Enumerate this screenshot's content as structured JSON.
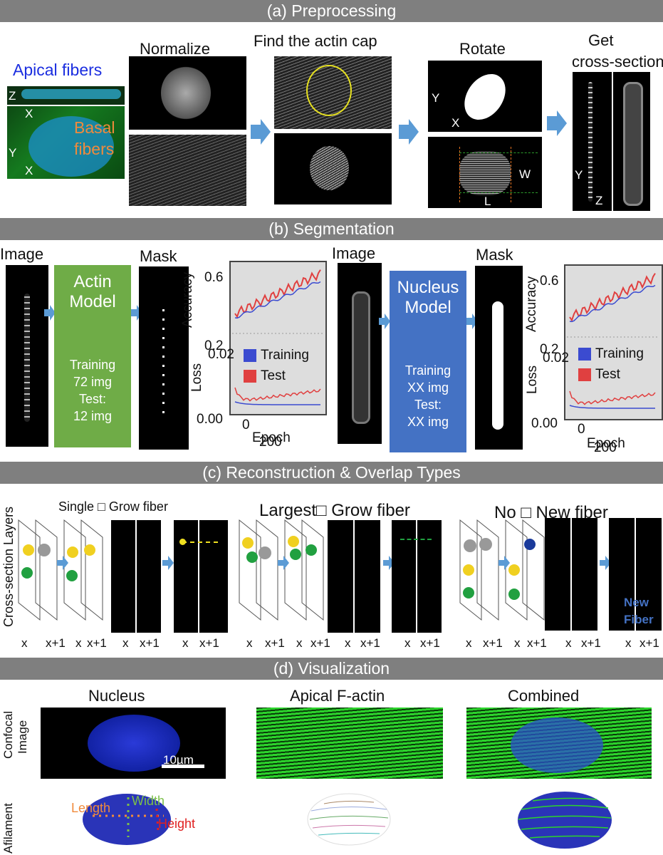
{
  "sections": {
    "a": "(a) Preprocessing",
    "b": "(b) Segmentation",
    "c": "(c) Reconstruction & Overlap Types",
    "d": "(d) Visualization"
  },
  "pre": {
    "apical": "Apical fibers",
    "basal1": "Basal",
    "basal2": "fibers",
    "axis_z": "Z",
    "axis_x": "X",
    "axis_y": "Y",
    "normalize": "Normalize",
    "find_cap": "Find the actin cap",
    "rotate": "Rotate",
    "get1": "Get",
    "get2": "cross-section",
    "W": "W",
    "L": "L"
  },
  "seg": {
    "image": "Image",
    "mask": "Mask",
    "actin1": "Actin",
    "actin2": "Model",
    "actin_train1": "Training",
    "actin_train2": "72 img",
    "actin_test1": "Test:",
    "actin_test2": "12 img",
    "nucleus1": "Nucleus",
    "nucleus2": "Model",
    "nuc_train1": "Training",
    "nuc_train2": "XX img",
    "nuc_test1": "Test:",
    "nuc_test2": "XX img",
    "accuracy": "Accuracy",
    "loss": "Loss",
    "epoch": "Epoch",
    "legend_training": "Training",
    "legend_test": "Test",
    "tick_06": "0.6",
    "tick_02": "0.2",
    "tick_002": "0.02",
    "tick_000": "0.00",
    "tick_0": "0",
    "tick_200": "200",
    "color_training": "#3b4bd0",
    "color_test": "#e04040"
  },
  "recon": {
    "ylabel": "Cross-section Layers",
    "t1": "Single □ Grow fiber",
    "t2": "Largest□ Grow fiber",
    "t3": "No □ New fiber",
    "x": "x",
    "x1": "x+1",
    "newfiber1": "New",
    "newfiber2": "Fiber"
  },
  "vis": {
    "nucleus": "Nucleus",
    "apical": "Apical F-actin",
    "combined": "Combined",
    "confocal1": "Confocal",
    "confocal2": "Image",
    "afilament": "Afilament",
    "scale": "10µm",
    "length": "Length",
    "width": "Width",
    "height": "Height"
  }
}
